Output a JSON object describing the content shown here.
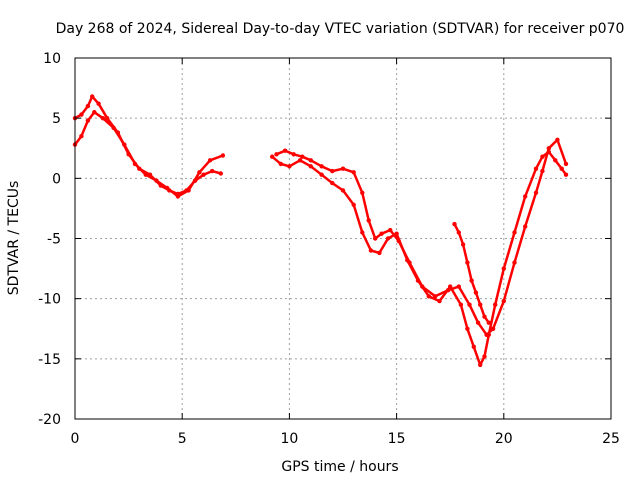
{
  "chart_data": {
    "type": "scatter",
    "title": "Day 268 of 2024, Sidereal Day-to-day VTEC variation (SDTVAR) for receiver p070",
    "xlabel": "GPS time / hours",
    "ylabel": "SDTVAR / TECUs",
    "xlim": [
      0,
      25
    ],
    "ylim": [
      -20,
      10
    ],
    "x_ticks": [
      "0",
      "5",
      "10",
      "15",
      "20",
      "25"
    ],
    "y_ticks": [
      "10",
      "5",
      "0",
      "-5",
      "-10",
      "-15",
      "-20"
    ],
    "grid": true,
    "colors": {
      "series": "#ff0000"
    },
    "series": [
      {
        "x": [
          0.0,
          0.3,
          0.6,
          0.8,
          1.1,
          1.5,
          2.0,
          2.5,
          3.0,
          3.5,
          4.0,
          4.4,
          4.8,
          5.2,
          5.6,
          6.0,
          6.4,
          6.8
        ],
        "y": [
          5.0,
          5.3,
          6.0,
          6.8,
          6.2,
          5.0,
          3.8,
          2.0,
          0.8,
          0.3,
          -0.6,
          -1.0,
          -1.3,
          -1.0,
          -0.2,
          0.3,
          0.6,
          0.4
        ]
      },
      {
        "x": [
          0.0,
          0.3,
          0.6,
          0.9,
          1.3,
          1.8,
          2.3,
          2.8,
          3.3,
          3.8,
          4.3,
          4.8,
          5.3,
          5.8,
          6.3,
          6.9
        ],
        "y": [
          2.8,
          3.5,
          4.8,
          5.5,
          5.0,
          4.2,
          2.8,
          1.2,
          0.3,
          -0.2,
          -0.8,
          -1.5,
          -1.0,
          0.5,
          1.5,
          1.9
        ]
      },
      {
        "x": [
          9.2,
          9.6,
          10.0,
          10.5,
          11.0,
          11.5,
          12.0,
          12.5,
          13.0,
          13.4,
          13.8,
          14.2,
          14.6,
          15.0,
          15.5,
          16.0,
          16.5,
          17.0,
          17.5,
          18.0,
          18.3,
          18.6,
          18.9,
          19.1,
          19.3,
          19.6,
          20.0,
          20.5,
          21.0,
          21.5,
          21.8,
          22.1,
          22.4,
          22.7,
          22.9
        ],
        "y": [
          1.8,
          1.2,
          1.0,
          1.5,
          1.0,
          0.3,
          -0.4,
          -1.0,
          -2.2,
          -4.5,
          -6.0,
          -6.2,
          -5.0,
          -4.6,
          -6.8,
          -8.5,
          -9.8,
          -10.2,
          -9.0,
          -10.5,
          -12.5,
          -14.0,
          -15.5,
          -14.8,
          -13.0,
          -10.5,
          -7.5,
          -4.5,
          -1.5,
          0.8,
          1.8,
          2.2,
          1.5,
          0.8,
          0.3
        ]
      },
      {
        "x": [
          9.4,
          9.8,
          10.2,
          10.6,
          11.0,
          11.5,
          12.0,
          12.5,
          13.0,
          13.4,
          13.7,
          14.0,
          14.3,
          14.7,
          15.1,
          15.6,
          16.2,
          16.8,
          17.4,
          17.9,
          18.4,
          18.8,
          19.2,
          19.5,
          20.0,
          20.5,
          21.0,
          21.5,
          21.8,
          22.1,
          22.5,
          22.9
        ],
        "y": [
          2.0,
          2.3,
          2.0,
          1.8,
          1.5,
          1.0,
          0.6,
          0.8,
          0.5,
          -1.2,
          -3.5,
          -5.0,
          -4.6,
          -4.3,
          -5.2,
          -7.0,
          -9.0,
          -9.8,
          -9.3,
          -9.0,
          -10.5,
          -12.0,
          -13.0,
          -12.5,
          -10.2,
          -7.0,
          -4.0,
          -1.2,
          0.6,
          2.5,
          3.2,
          1.2
        ]
      },
      {
        "x": [
          17.7,
          17.9,
          18.1,
          18.3,
          18.5,
          18.7,
          18.9,
          19.1,
          19.3
        ],
        "y": [
          -3.8,
          -4.5,
          -5.5,
          -7.0,
          -8.5,
          -9.5,
          -10.5,
          -11.5,
          -12.0
        ]
      }
    ]
  }
}
